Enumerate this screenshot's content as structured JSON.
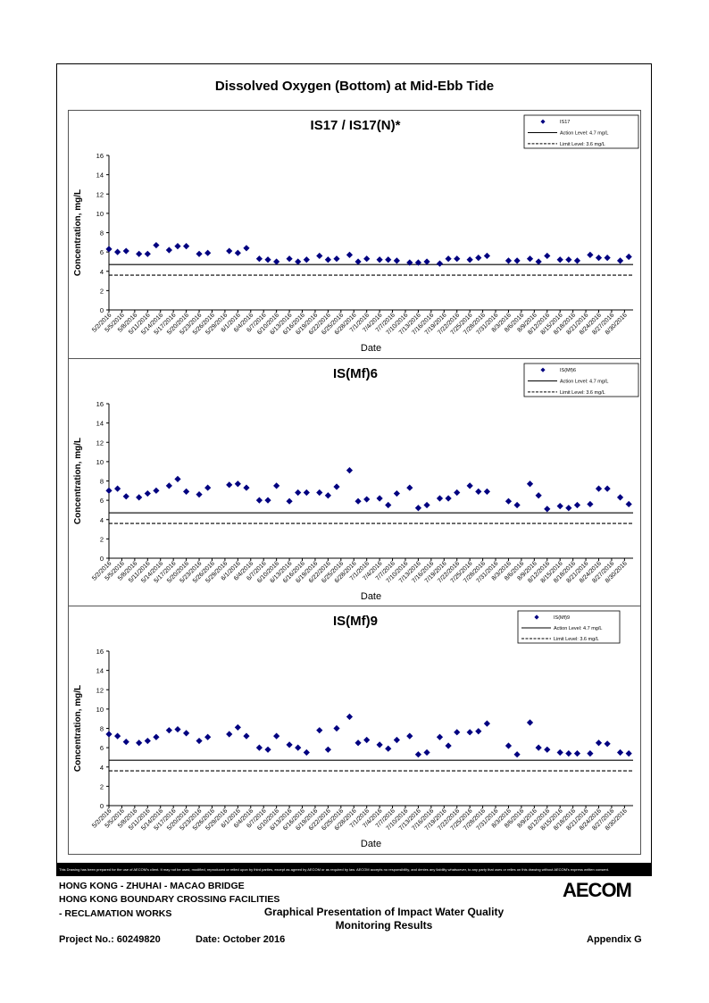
{
  "page": {
    "title": "Dissolved Oxygen (Bottom) at Mid-Ebb Tide",
    "disclaimer": "This Drawing has been prepared for the use of AECOM's client. It may not be used, modified, reproduced or relied upon by third parties, except as agreed by AECOM or as required by law. AECOM accepts no responsibility, and denies any liability whatsoever, to any party that uses or relies on this drawing without AECOM's express written consent."
  },
  "footer": {
    "line1": "HONG KONG - ZHUHAI - MACAO BRIDGE",
    "line2": "HONG KONG BOUNDARY CROSSING FACILITIES",
    "line3": "- RECLAMATION WORKS",
    "center_title_1": "Graphical Presentation of Impact Water Quality",
    "center_title_2": "Monitoring Results",
    "project": "Project No.: 60249820",
    "date": "Date: October 2016",
    "appendix": "Appendix G",
    "logo": "AECOM"
  },
  "chart_data": [
    {
      "type": "scatter",
      "title": "IS17 / IS17(N)*",
      "xlabel": "Date",
      "ylabel": "Concentration, mg/L",
      "ylim": [
        0,
        16
      ],
      "yticks": [
        0,
        2,
        4,
        6,
        8,
        10,
        12,
        14,
        16
      ],
      "xticklabels": [
        "5/2/2016",
        "5/5/2016",
        "5/8/2016",
        "5/11/2016",
        "5/14/2016",
        "5/17/2016",
        "5/20/2016",
        "5/23/2016",
        "5/26/2016",
        "5/29/2016",
        "6/1/2016",
        "6/4/2016",
        "6/7/2016",
        "6/10/2016",
        "6/13/2016",
        "6/16/2016",
        "6/19/2016",
        "6/22/2016",
        "6/25/2016",
        "6/28/2016",
        "7/1/2016",
        "7/4/2016",
        "7/7/2016",
        "7/10/2016",
        "7/13/2016",
        "7/16/2016",
        "7/19/2016",
        "7/22/2016",
        "7/25/2016",
        "7/28/2016",
        "7/31/2016",
        "8/3/2016",
        "8/6/2016",
        "8/9/2016",
        "8/12/2016",
        "8/15/2016",
        "8/18/2016",
        "8/21/2016",
        "8/24/2016",
        "8/27/2016",
        "8/30/2016"
      ],
      "series": [
        {
          "name": "IS17",
          "marker": "diamond",
          "color": "#000080",
          "x": [
            "5/2/2016",
            "5/4/2016",
            "5/6/2016",
            "5/9/2016",
            "5/11/2016",
            "5/13/2016",
            "5/16/2016",
            "5/18/2016",
            "5/20/2016",
            "5/23/2016",
            "5/25/2016",
            "5/30/2016",
            "6/1/2016",
            "6/3/2016",
            "6/6/2016",
            "6/8/2016",
            "6/10/2016",
            "6/13/2016",
            "6/15/2016",
            "6/17/2016",
            "6/20/2016",
            "6/22/2016",
            "6/24/2016",
            "6/27/2016",
            "6/29/2016",
            "7/1/2016",
            "7/4/2016",
            "7/6/2016",
            "7/8/2016",
            "7/11/2016",
            "7/13/2016",
            "7/15/2016",
            "7/18/2016",
            "7/20/2016",
            "7/22/2016",
            "7/25/2016",
            "7/27/2016",
            "7/29/2016",
            "8/3/2016",
            "8/5/2016",
            "8/8/2016",
            "8/10/2016",
            "8/12/2016",
            "8/15/2016",
            "8/17/2016",
            "8/19/2016",
            "8/22/2016",
            "8/24/2016",
            "8/26/2016",
            "8/29/2016",
            "8/31/2016"
          ],
          "y": [
            6.3,
            6.0,
            6.1,
            5.8,
            5.8,
            6.7,
            6.2,
            6.6,
            6.6,
            5.8,
            5.9,
            6.1,
            5.9,
            6.4,
            5.3,
            5.2,
            5.0,
            5.3,
            5.0,
            5.2,
            5.6,
            5.2,
            5.3,
            5.7,
            5.0,
            5.3,
            5.2,
            5.2,
            5.1,
            4.9,
            4.9,
            5.0,
            4.8,
            5.3,
            5.3,
            5.2,
            5.4,
            5.6,
            5.1,
            5.1,
            5.3,
            5.0,
            5.6,
            5.2,
            5.2,
            5.1,
            5.7,
            5.4,
            5.4,
            5.1,
            5.5
          ]
        }
      ],
      "reference_lines": [
        {
          "name": "Action Level: 4.7 mg/L",
          "value": 4.7,
          "style": "solid"
        },
        {
          "name": "Limit Level: 3.6 mg/L",
          "value": 3.6,
          "style": "dashed"
        }
      ],
      "legend": "top-right",
      "grid": false
    },
    {
      "type": "scatter",
      "title": "IS(Mf)6",
      "xlabel": "Date",
      "ylabel": "Concentration, mg/L",
      "ylim": [
        0,
        16
      ],
      "yticks": [
        0,
        2,
        4,
        6,
        8,
        10,
        12,
        14,
        16
      ],
      "xticklabels": [
        "5/2/2016",
        "5/5/2016",
        "5/8/2016",
        "5/11/2016",
        "5/14/2016",
        "5/17/2016",
        "5/20/2016",
        "5/23/2016",
        "5/26/2016",
        "5/29/2016",
        "6/1/2016",
        "6/4/2016",
        "6/7/2016",
        "6/10/2016",
        "6/13/2016",
        "6/16/2016",
        "6/19/2016",
        "6/22/2016",
        "6/25/2016",
        "6/28/2016",
        "7/1/2016",
        "7/4/2016",
        "7/7/2016",
        "7/10/2016",
        "7/13/2016",
        "7/16/2016",
        "7/19/2016",
        "7/22/2016",
        "7/25/2016",
        "7/28/2016",
        "7/31/2016",
        "8/3/2016",
        "8/6/2016",
        "8/9/2016",
        "8/12/2016",
        "8/15/2016",
        "8/18/2016",
        "8/21/2016",
        "8/24/2016",
        "8/27/2016",
        "8/30/2016"
      ],
      "series": [
        {
          "name": "IS(Mf)6",
          "marker": "diamond",
          "color": "#000080",
          "x": [
            "5/2/2016",
            "5/4/2016",
            "5/6/2016",
            "5/9/2016",
            "5/11/2016",
            "5/13/2016",
            "5/16/2016",
            "5/18/2016",
            "5/20/2016",
            "5/23/2016",
            "5/25/2016",
            "5/30/2016",
            "6/1/2016",
            "6/3/2016",
            "6/6/2016",
            "6/8/2016",
            "6/10/2016",
            "6/13/2016",
            "6/15/2016",
            "6/17/2016",
            "6/20/2016",
            "6/22/2016",
            "6/24/2016",
            "6/27/2016",
            "6/29/2016",
            "7/1/2016",
            "7/4/2016",
            "7/6/2016",
            "7/8/2016",
            "7/11/2016",
            "7/13/2016",
            "7/15/2016",
            "7/18/2016",
            "7/20/2016",
            "7/22/2016",
            "7/25/2016",
            "7/27/2016",
            "7/29/2016",
            "8/3/2016",
            "8/5/2016",
            "8/8/2016",
            "8/10/2016",
            "8/12/2016",
            "8/15/2016",
            "8/17/2016",
            "8/19/2016",
            "8/22/2016",
            "8/24/2016",
            "8/26/2016",
            "8/29/2016",
            "8/31/2016"
          ],
          "y": [
            7.0,
            7.2,
            6.4,
            6.3,
            6.7,
            7.0,
            7.5,
            8.2,
            6.9,
            6.6,
            7.3,
            7.6,
            7.7,
            7.3,
            6.0,
            6.0,
            7.5,
            5.9,
            6.8,
            6.8,
            6.8,
            6.5,
            7.4,
            9.1,
            5.9,
            6.1,
            6.2,
            5.5,
            6.7,
            7.3,
            5.2,
            5.5,
            6.2,
            6.2,
            6.8,
            7.5,
            6.9,
            6.9,
            5.9,
            5.5,
            7.7,
            6.5,
            5.1,
            5.4,
            5.2,
            5.5,
            5.6,
            7.2,
            7.2,
            6.3,
            5.6
          ]
        }
      ],
      "reference_lines": [
        {
          "name": "Action Level: 4.7 mg/L",
          "value": 4.7,
          "style": "solid"
        },
        {
          "name": "Limit Level: 3.6 mg/L",
          "value": 3.6,
          "style": "dashed"
        }
      ],
      "legend": "top-right",
      "grid": false
    },
    {
      "type": "scatter",
      "title": "IS(Mf)9",
      "xlabel": "Date",
      "ylabel": "Concentration, mg/L",
      "ylim": [
        0,
        16
      ],
      "yticks": [
        0,
        2,
        4,
        6,
        8,
        10,
        12,
        14,
        16
      ],
      "xticklabels": [
        "5/2/2016",
        "5/5/2016",
        "5/8/2016",
        "5/11/2016",
        "5/14/2016",
        "5/17/2016",
        "5/20/2016",
        "5/23/2016",
        "5/26/2016",
        "5/29/2016",
        "6/1/2016",
        "6/4/2016",
        "6/7/2016",
        "6/10/2016",
        "6/13/2016",
        "6/16/2016",
        "6/19/2016",
        "6/22/2016",
        "6/25/2016",
        "6/28/2016",
        "7/1/2016",
        "7/4/2016",
        "7/7/2016",
        "7/10/2016",
        "7/13/2016",
        "7/16/2016",
        "7/19/2016",
        "7/22/2016",
        "7/25/2016",
        "7/28/2016",
        "7/31/2016",
        "8/3/2016",
        "8/6/2016",
        "8/9/2016",
        "8/12/2016",
        "8/15/2016",
        "8/18/2016",
        "8/21/2016",
        "8/24/2016",
        "8/27/2016",
        "8/30/2016"
      ],
      "series": [
        {
          "name": "IS(Mf)9",
          "marker": "diamond",
          "color": "#000080",
          "x": [
            "5/2/2016",
            "5/4/2016",
            "5/6/2016",
            "5/9/2016",
            "5/11/2016",
            "5/13/2016",
            "5/16/2016",
            "5/18/2016",
            "5/20/2016",
            "5/23/2016",
            "5/25/2016",
            "5/30/2016",
            "6/1/2016",
            "6/3/2016",
            "6/6/2016",
            "6/8/2016",
            "6/10/2016",
            "6/13/2016",
            "6/15/2016",
            "6/17/2016",
            "6/20/2016",
            "6/22/2016",
            "6/24/2016",
            "6/27/2016",
            "6/29/2016",
            "7/1/2016",
            "7/4/2016",
            "7/6/2016",
            "7/8/2016",
            "7/11/2016",
            "7/13/2016",
            "7/15/2016",
            "7/18/2016",
            "7/20/2016",
            "7/22/2016",
            "7/25/2016",
            "7/27/2016",
            "7/29/2016",
            "8/3/2016",
            "8/5/2016",
            "8/8/2016",
            "8/10/2016",
            "8/12/2016",
            "8/15/2016",
            "8/17/2016",
            "8/19/2016",
            "8/22/2016",
            "8/24/2016",
            "8/26/2016",
            "8/29/2016",
            "8/31/2016"
          ],
          "y": [
            7.4,
            7.2,
            6.6,
            6.5,
            6.7,
            7.1,
            7.8,
            7.9,
            7.5,
            6.7,
            7.1,
            7.4,
            8.1,
            7.2,
            6.0,
            5.8,
            7.2,
            6.3,
            6.0,
            5.5,
            7.8,
            5.8,
            8.0,
            9.2,
            6.5,
            6.8,
            6.3,
            5.9,
            6.8,
            7.2,
            5.3,
            5.5,
            7.1,
            6.2,
            7.6,
            7.6,
            7.7,
            8.5,
            6.2,
            5.3,
            8.6,
            6.0,
            5.8,
            5.5,
            5.4,
            5.4,
            5.4,
            6.5,
            6.4,
            5.5,
            5.4
          ]
        }
      ],
      "reference_lines": [
        {
          "name": "Action Level: 4.7 mg/L",
          "value": 4.7,
          "style": "solid"
        },
        {
          "name": "Limit Level: 3.6 mg/L",
          "value": 3.6,
          "style": "dashed"
        }
      ],
      "legend": "top-right",
      "grid": false
    }
  ]
}
